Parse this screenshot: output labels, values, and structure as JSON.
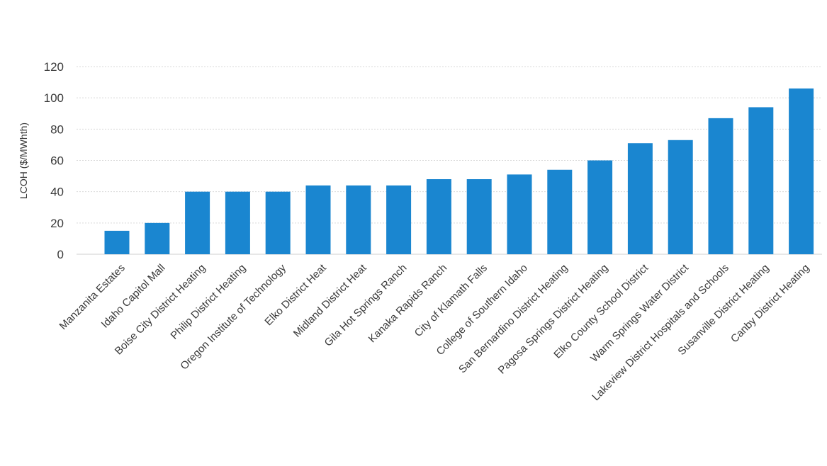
{
  "chart_data": {
    "type": "bar",
    "title": "",
    "xlabel": "",
    "ylabel": "LCOH ($/MWhth)",
    "ylim": [
      0,
      120
    ],
    "yticks": [
      0,
      20,
      40,
      60,
      80,
      100,
      120
    ],
    "grid": true,
    "legend": "none",
    "bar_color": "#1a86d0",
    "categories": [
      "Manzanita Estates",
      "Idaho Capitol Mall",
      "Boise City District Heating",
      "Philip District Heating",
      "Oregon Institute of Technology",
      "Elko District Heat",
      "Midland District Heat",
      "Gila Hot Springs Ranch",
      "Kanaka Rapids Ranch",
      "City of Klamath Falls",
      "College of Southern Idaho",
      "San Bernardino District Heating",
      "Pagosa Springs District Heating",
      "Elko County School District",
      "Warm Springs Water District",
      "Lakeview District Hospitals and Schools",
      "Susanville District Heating",
      "Canby District Heating"
    ],
    "values": [
      15,
      20,
      40,
      40,
      40,
      44,
      44,
      44,
      48,
      48,
      51,
      54,
      60,
      71,
      73,
      87,
      94,
      106
    ]
  }
}
